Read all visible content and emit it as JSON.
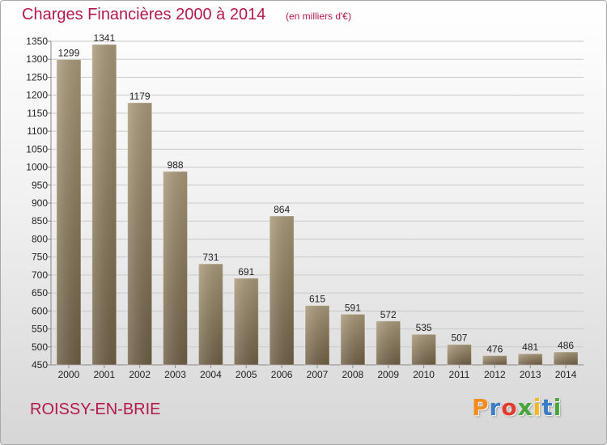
{
  "header": {
    "title": "Charges Financières 2000 à 2014",
    "subtitle": "(en milliers d'€)"
  },
  "footer": {
    "city": "ROISSY-EN-BRIE",
    "logo_text": "Proxiti",
    "logo_colors": [
      "#f28c1e",
      "#3b7dc4",
      "#e23a2f",
      "#46a63b",
      "#f2b81e",
      "#3b7dc4",
      "#46a63b"
    ]
  },
  "colors": {
    "title": "#b3184e",
    "bar_light": "#a89878",
    "bar_dark": "#6e5e44"
  },
  "chart_data": {
    "type": "bar",
    "title": "Charges Financières 2000 à 2014",
    "subtitle": "(en milliers d'€)",
    "categories": [
      "2000",
      "2001",
      "2002",
      "2003",
      "2004",
      "2005",
      "2006",
      "2007",
      "2008",
      "2009",
      "2010",
      "2011",
      "2012",
      "2013",
      "2014"
    ],
    "values": [
      1299,
      1341,
      1179,
      988,
      731,
      691,
      864,
      615,
      591,
      572,
      535,
      507,
      476,
      481,
      486
    ],
    "ylim": [
      450,
      1350
    ],
    "yticks": [
      450,
      500,
      550,
      600,
      650,
      700,
      750,
      800,
      850,
      900,
      950,
      1000,
      1050,
      1100,
      1150,
      1200,
      1250,
      1300,
      1350
    ],
    "grid": true,
    "legend": "none"
  }
}
